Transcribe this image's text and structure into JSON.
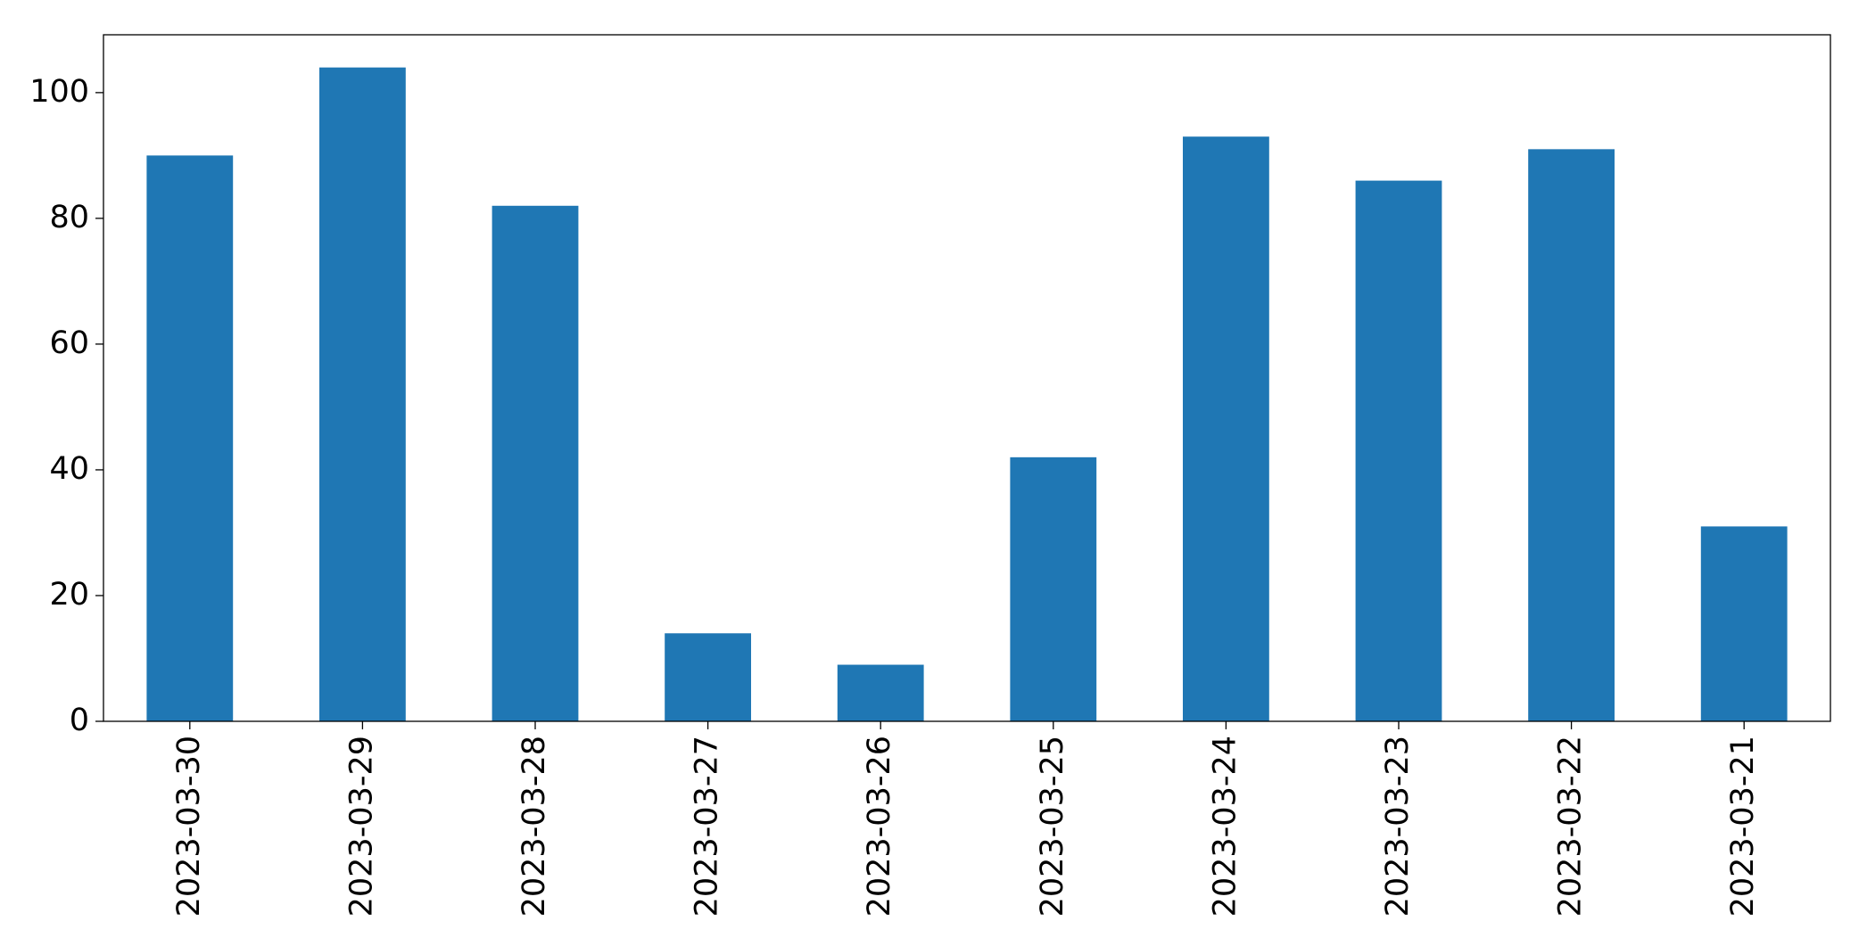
{
  "chart_data": {
    "type": "bar",
    "categories": [
      "2023-03-30",
      "2023-03-29",
      "2023-03-28",
      "2023-03-27",
      "2023-03-26",
      "2023-03-25",
      "2023-03-24",
      "2023-03-23",
      "2023-03-22",
      "2023-03-21"
    ],
    "values": [
      90,
      104,
      82,
      14,
      9,
      42,
      93,
      86,
      91,
      31
    ],
    "color": "#1f77b4",
    "ylim": [
      0,
      109.2
    ],
    "yticks": [
      0,
      20,
      40,
      60,
      80,
      100
    ],
    "grid": false
  }
}
